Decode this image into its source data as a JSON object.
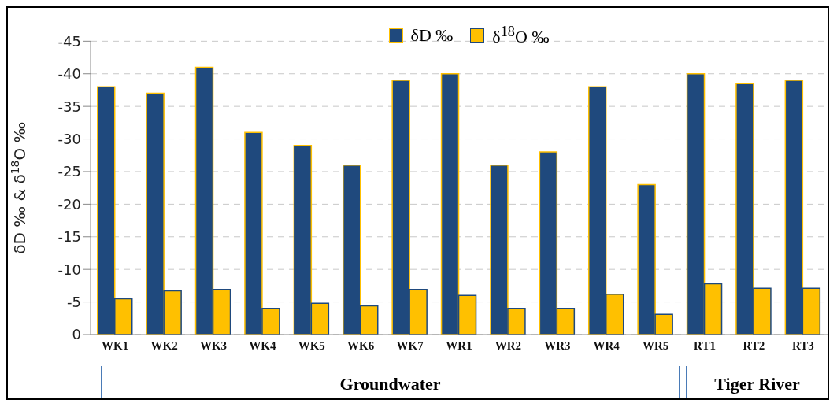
{
  "chart_data": {
    "type": "bar",
    "ylabel": "δD ‰ & δ$^{18}$O ‰",
    "categories": [
      "WK1",
      "WK2",
      "WK3",
      "WK4",
      "WK5",
      "WK6",
      "WK7",
      "WR1",
      "WR2",
      "WR3",
      "WR4",
      "WR5",
      "RT1",
      "RT2",
      "RT3"
    ],
    "series": [
      {
        "name": "δD ‰",
        "color": "#1f497d",
        "values": [
          -38,
          -37,
          -41,
          -31,
          -29,
          -26,
          -39,
          -40,
          -26,
          -28,
          -38,
          -23,
          -40,
          -38.5,
          -39
        ]
      },
      {
        "name": "δ$^{18}$O ‰",
        "color": "#ffc000",
        "values": [
          -5.5,
          -6.7,
          -6.9,
          -4,
          -4.8,
          -4.4,
          -6.9,
          -6,
          -4,
          -4,
          -6.2,
          -3.1,
          -7.8,
          -7.1,
          -7.1
        ]
      }
    ],
    "ylim": [
      0,
      -45
    ],
    "yticks": [
      0,
      -5,
      -10,
      -15,
      -20,
      -25,
      -30,
      -35,
      -40,
      -45
    ],
    "grid": "y",
    "legend": "top",
    "annotations": [
      "Groundwater",
      "Tiger River"
    ]
  }
}
